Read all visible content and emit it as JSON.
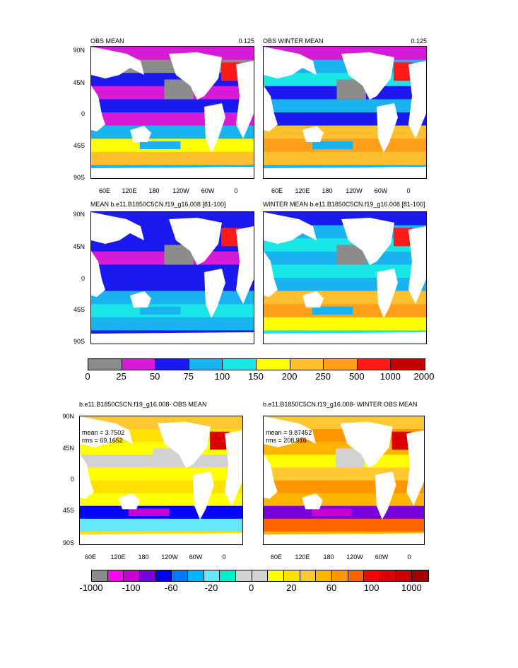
{
  "top_panels": [
    {
      "title": "OBS MEAN",
      "value": "0.125"
    },
    {
      "title": "OBS WINTER MEAN",
      "value": "0.125"
    },
    {
      "title": "MEAN b.e11.B1850C5CN.f19_g16.008 [81-100]",
      "value": ""
    },
    {
      "title": "WINTER MEAN b.e11.B1850C5CN.f19_g16.008 [81-100]",
      "value": ""
    }
  ],
  "diff_panels": [
    {
      "title": "b.e11.B1850C5CN.f19_g16.008- OBS MEAN",
      "mean": "mean = 3.7502",
      "rms": "rms = 69.1652"
    },
    {
      "title": "b.e11.B1850C5CN.f19_g16.008- WINTER OBS MEAN",
      "mean": "mean = 9.87452",
      "rms": "rms = 208.916"
    }
  ],
  "lat_labels": [
    "90N",
    "45N",
    "0",
    "45S",
    "90S"
  ],
  "lon_labels": [
    "60E",
    "120E",
    "180",
    "120W",
    "60W",
    "0"
  ],
  "colorbar1": {
    "colors": [
      "#8c8c8c",
      "#d61ad6",
      "#1a1af0",
      "#19b4f0",
      "#19e6e6",
      "#ffff00",
      "#ffc030",
      "#ff9f1a",
      "#ff1a1a",
      "#c30000"
    ],
    "labels": [
      "0",
      "25",
      "50",
      "75",
      "100",
      "150",
      "200",
      "250",
      "500",
      "1000",
      "2000"
    ]
  },
  "colorbar2": {
    "colors": [
      "#8c8c8c",
      "#ff00ff",
      "#c800d2",
      "#7800dc",
      "#0000ff",
      "#0078ff",
      "#00b4ff",
      "#66e6ff",
      "#00f0c8",
      "#d2d2d2",
      "#d2d2d2",
      "#ffff00",
      "#ffe000",
      "#ffc832",
      "#ffb400",
      "#ff9600",
      "#ff6400",
      "#ff0000",
      "#dc0000",
      "#c80000",
      "#a00000"
    ],
    "labels": [
      "-1000",
      "-100",
      "-60",
      "-20",
      "0",
      "20",
      "60",
      "100",
      "1000"
    ]
  }
}
